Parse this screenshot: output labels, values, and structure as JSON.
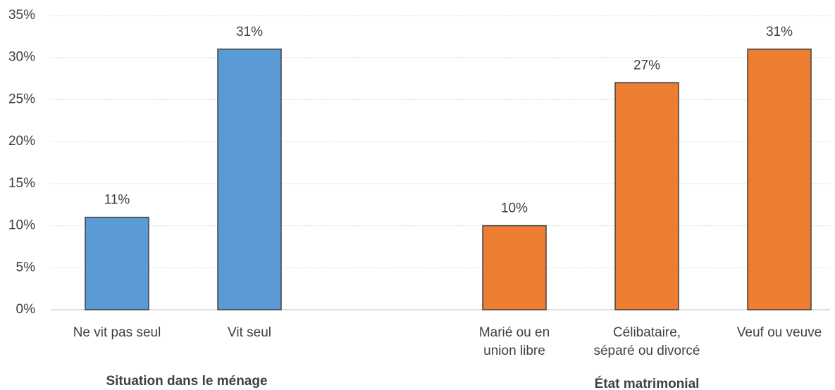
{
  "chart_data": {
    "type": "bar",
    "categories": [
      "Ne vit pas seul",
      "Vit seul",
      null,
      "Marié ou en\nunion libre",
      "Célibataire,\nséparé ou divorcé",
      "Veuf ou veuve"
    ],
    "values": [
      11,
      31,
      null,
      10,
      27,
      31
    ],
    "value_labels": [
      "11%",
      "31%",
      null,
      "10%",
      "27%",
      "31%"
    ],
    "colors": [
      "#5b9bd5",
      "#5b9bd5",
      null,
      "#ed7d31",
      "#ed7d31",
      "#ed7d31"
    ],
    "group_labels": [
      "Situation dans le ménage",
      "État matrimonial"
    ],
    "ylim": [
      0,
      35
    ],
    "yticks": [
      {
        "value": 0,
        "label": "0%"
      },
      {
        "value": 5,
        "label": "5%"
      },
      {
        "value": 10,
        "label": "10%"
      },
      {
        "value": 15,
        "label": "15%"
      },
      {
        "value": 20,
        "label": "20%"
      },
      {
        "value": 25,
        "label": "25%"
      },
      {
        "value": 30,
        "label": "30%"
      },
      {
        "value": 35,
        "label": "35%"
      }
    ],
    "grid": true
  }
}
